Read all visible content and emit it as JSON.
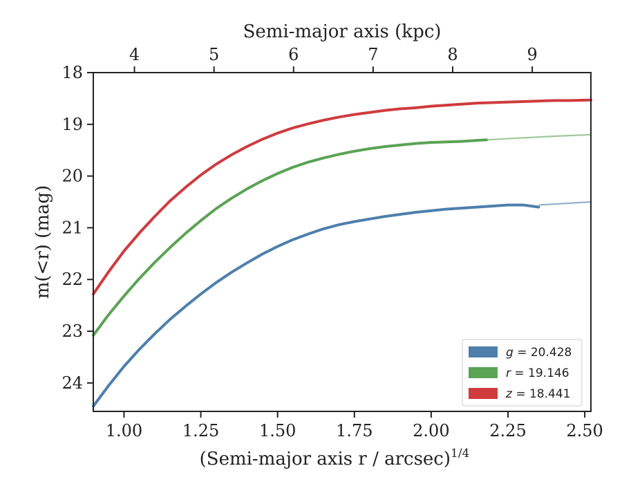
{
  "chart_data": {
    "type": "line",
    "xlabel": "(Semi-major axis r / arcsec)",
    "xlabel_exponent": "1/4",
    "ylabel": "m(<r) (mag)",
    "top_xlabel": "Semi-major axis (kpc)",
    "xlim": [
      0.9,
      2.52
    ],
    "ylim": [
      24.55,
      18.0
    ],
    "y_inverted": true,
    "xticks": [
      1.0,
      1.25,
      1.5,
      1.75,
      2.0,
      2.25,
      2.5
    ],
    "xtick_labels": [
      "1.00",
      "1.25",
      "1.50",
      "1.75",
      "2.00",
      "2.25",
      "2.50"
    ],
    "yticks": [
      18,
      19,
      20,
      21,
      22,
      23,
      24
    ],
    "ytick_labels": [
      "18",
      "19",
      "20",
      "21",
      "22",
      "23",
      "24"
    ],
    "top_ticks": [
      {
        "label": "4",
        "x": 1.034
      },
      {
        "label": "5",
        "x": 1.293
      },
      {
        "label": "6",
        "x": 1.552
      },
      {
        "label": "7",
        "x": 1.811
      },
      {
        "label": "8",
        "x": 2.07
      },
      {
        "label": "9",
        "x": 2.329
      }
    ],
    "grid": false,
    "legend_position": "bottom-right",
    "series": [
      {
        "name": "g = 20.428",
        "legend_symbol": "g",
        "legend_value": "= 20.428",
        "color": "#4e7fac",
        "points": [
          [
            0.9,
            24.45
          ],
          [
            0.95,
            24.05
          ],
          [
            1.0,
            23.68
          ],
          [
            1.05,
            23.35
          ],
          [
            1.1,
            23.05
          ],
          [
            1.15,
            22.77
          ],
          [
            1.2,
            22.52
          ],
          [
            1.25,
            22.28
          ],
          [
            1.3,
            22.06
          ],
          [
            1.35,
            21.86
          ],
          [
            1.4,
            21.68
          ],
          [
            1.45,
            21.51
          ],
          [
            1.5,
            21.36
          ],
          [
            1.55,
            21.23
          ],
          [
            1.6,
            21.12
          ],
          [
            1.65,
            21.02
          ],
          [
            1.7,
            20.94
          ],
          [
            1.75,
            20.88
          ],
          [
            1.8,
            20.83
          ],
          [
            1.85,
            20.78
          ],
          [
            1.9,
            20.74
          ],
          [
            1.95,
            20.7
          ],
          [
            2.0,
            20.67
          ],
          [
            2.05,
            20.64
          ],
          [
            2.1,
            20.62
          ],
          [
            2.15,
            20.6
          ],
          [
            2.2,
            20.58
          ],
          [
            2.25,
            20.56
          ],
          [
            2.3,
            20.56
          ],
          [
            2.35,
            20.6
          ]
        ],
        "extension": [
          [
            2.35,
            20.56
          ],
          [
            2.52,
            20.5
          ]
        ]
      },
      {
        "name": "r = 19.146",
        "legend_symbol": "r",
        "legend_value": "= 19.146",
        "color": "#5aa354",
        "points": [
          [
            0.9,
            23.08
          ],
          [
            0.95,
            22.68
          ],
          [
            1.0,
            22.32
          ],
          [
            1.05,
            21.98
          ],
          [
            1.1,
            21.67
          ],
          [
            1.15,
            21.38
          ],
          [
            1.2,
            21.11
          ],
          [
            1.25,
            20.86
          ],
          [
            1.3,
            20.63
          ],
          [
            1.35,
            20.43
          ],
          [
            1.4,
            20.25
          ],
          [
            1.45,
            20.09
          ],
          [
            1.5,
            19.95
          ],
          [
            1.55,
            19.83
          ],
          [
            1.6,
            19.73
          ],
          [
            1.65,
            19.65
          ],
          [
            1.7,
            19.58
          ],
          [
            1.75,
            19.52
          ],
          [
            1.8,
            19.47
          ],
          [
            1.85,
            19.43
          ],
          [
            1.9,
            19.4
          ],
          [
            1.95,
            19.37
          ],
          [
            2.0,
            19.35
          ],
          [
            2.05,
            19.34
          ],
          [
            2.1,
            19.33
          ],
          [
            2.15,
            19.31
          ],
          [
            2.18,
            19.3
          ]
        ],
        "extension": [
          [
            2.18,
            19.3
          ],
          [
            2.3,
            19.26
          ],
          [
            2.4,
            19.23
          ],
          [
            2.52,
            19.2
          ]
        ]
      },
      {
        "name": "z = 18.441",
        "legend_symbol": "z",
        "legend_value": "= 18.441",
        "color": "#d03b3e",
        "points": [
          [
            0.9,
            22.28
          ],
          [
            0.95,
            21.85
          ],
          [
            1.0,
            21.45
          ],
          [
            1.05,
            21.1
          ],
          [
            1.1,
            20.78
          ],
          [
            1.15,
            20.48
          ],
          [
            1.2,
            20.22
          ],
          [
            1.25,
            19.98
          ],
          [
            1.3,
            19.77
          ],
          [
            1.35,
            19.59
          ],
          [
            1.4,
            19.43
          ],
          [
            1.45,
            19.29
          ],
          [
            1.5,
            19.17
          ],
          [
            1.55,
            19.07
          ],
          [
            1.6,
            18.99
          ],
          [
            1.65,
            18.92
          ],
          [
            1.7,
            18.86
          ],
          [
            1.75,
            18.81
          ],
          [
            1.8,
            18.77
          ],
          [
            1.85,
            18.73
          ],
          [
            1.9,
            18.7
          ],
          [
            1.95,
            18.68
          ],
          [
            2.0,
            18.65
          ],
          [
            2.05,
            18.63
          ],
          [
            2.1,
            18.61
          ],
          [
            2.15,
            18.59
          ],
          [
            2.2,
            18.58
          ],
          [
            2.25,
            18.57
          ],
          [
            2.3,
            18.56
          ],
          [
            2.35,
            18.55
          ],
          [
            2.4,
            18.54
          ],
          [
            2.45,
            18.54
          ],
          [
            2.52,
            18.53
          ]
        ],
        "extension": []
      }
    ]
  }
}
